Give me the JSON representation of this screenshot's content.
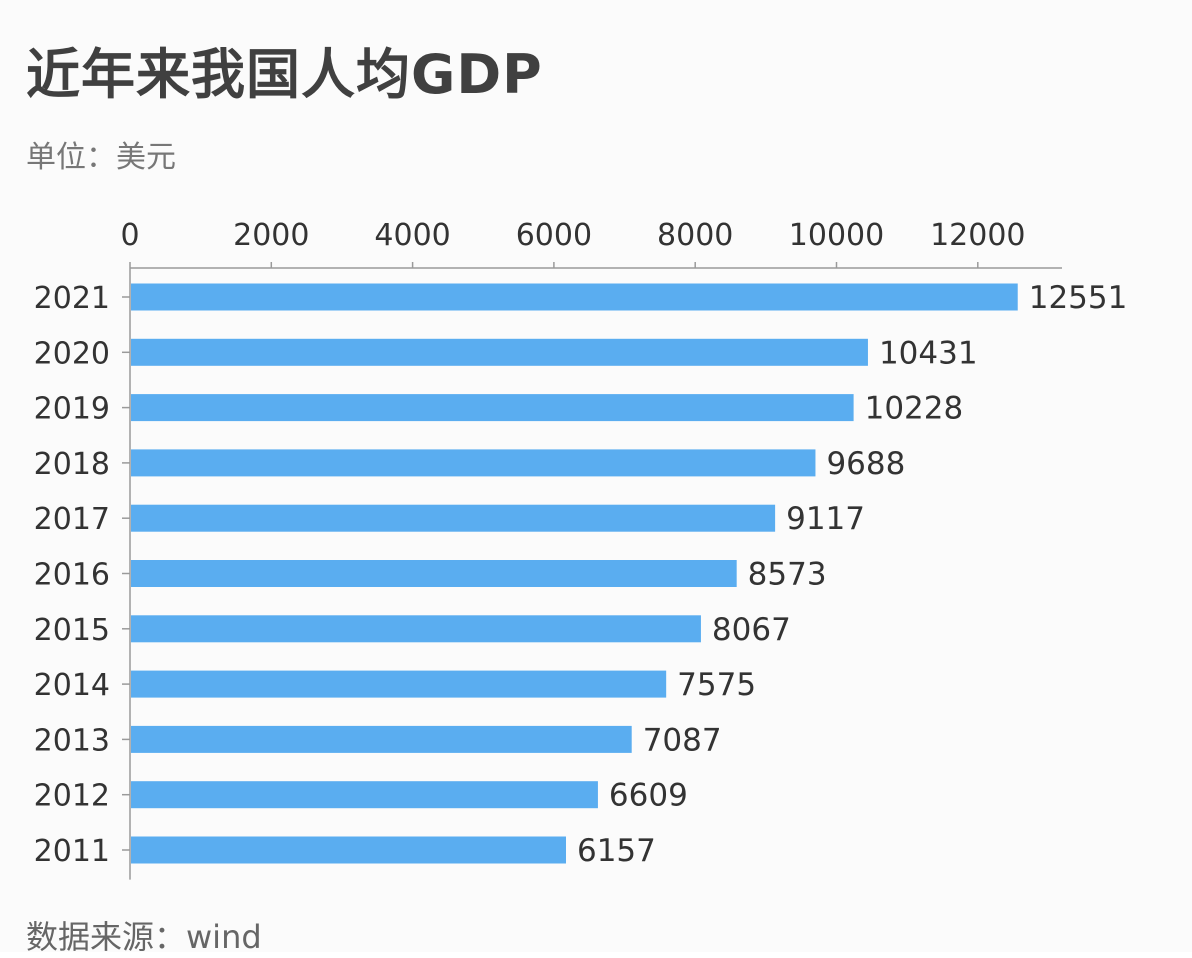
{
  "header": {
    "title": "近年来我国人均GDP",
    "unit": "单位：美元"
  },
  "footer": {
    "source": "数据来源：wind"
  },
  "colors": {
    "bar": "#5aadf0",
    "axis": "#9a9a9a",
    "text": "#333333"
  },
  "chart_data": {
    "type": "bar",
    "orientation": "horizontal",
    "title": "近年来我国人均GDP",
    "unit": "单位：美元",
    "source": "数据来源：wind",
    "categories": [
      "2021",
      "2020",
      "2019",
      "2018",
      "2017",
      "2016",
      "2015",
      "2014",
      "2013",
      "2012",
      "2011"
    ],
    "values": [
      12551,
      10431,
      10228,
      9688,
      9117,
      8573,
      8067,
      7575,
      7087,
      6609,
      6157
    ],
    "xlim": [
      0,
      13000
    ],
    "xticks": [
      0,
      2000,
      4000,
      6000,
      8000,
      10000,
      12000
    ],
    "x_axis_position": "top",
    "grid": false,
    "legend": "none",
    "data_labels": true
  }
}
